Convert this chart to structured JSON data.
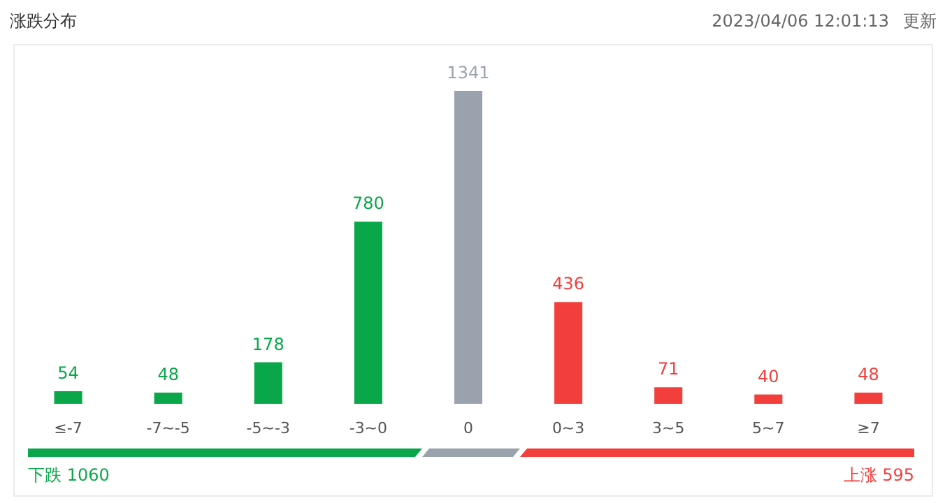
{
  "chart_data": {
    "type": "bar",
    "title": "涨跌分布",
    "categories": [
      "≤-7",
      "-7~-5",
      "-5~-3",
      "-3~0",
      "0",
      "0~3",
      "3~5",
      "5~7",
      "≥7"
    ],
    "values": [
      54,
      48,
      178,
      780,
      1341,
      436,
      71,
      40,
      48
    ],
    "colors": [
      "#09a74a",
      "#09a74a",
      "#09a74a",
      "#09a74a",
      "#9aa3ad",
      "#f23f3c",
      "#f23f3c",
      "#f23f3c",
      "#f23f3c"
    ],
    "data_labels": true,
    "annotations": [
      "2023/04/06 12:01:13",
      "更新",
      "下跌 1060",
      "上涨 595"
    ]
  }
}
